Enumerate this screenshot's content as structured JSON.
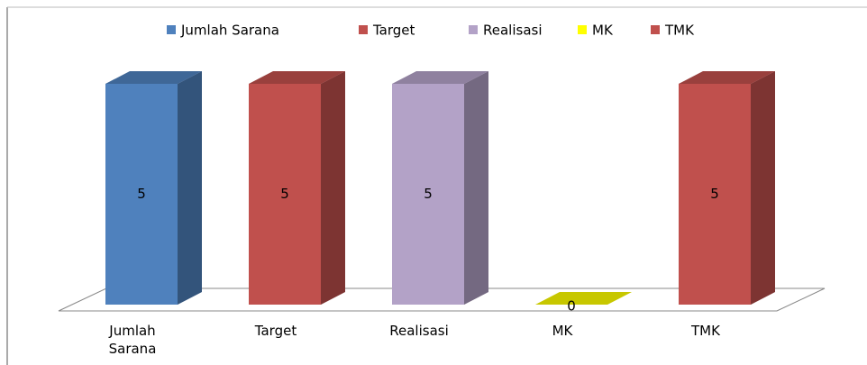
{
  "chart_data": {
    "type": "bar3d",
    "categories": [
      "Jumlah Sarana",
      "Target",
      "Realisasi",
      "MK",
      "TMK"
    ],
    "values": [
      5,
      5,
      5,
      0,
      5
    ],
    "colors": [
      "#4f81bd",
      "#c0504d",
      "#b3a2c7",
      "#ffff00",
      "#c0504d"
    ],
    "legend": "top"
  }
}
